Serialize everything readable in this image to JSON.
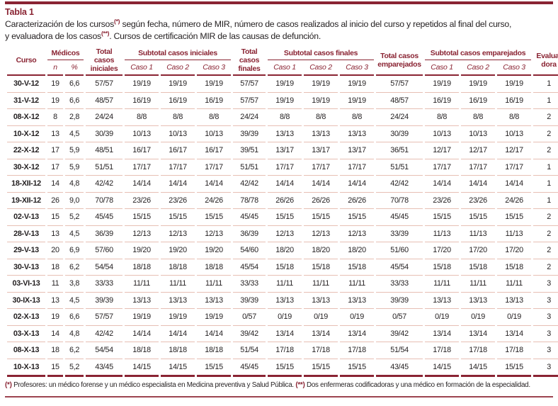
{
  "colors": {
    "accent": "#8A2433",
    "row_line": "#E7BFB4",
    "text": "#231F20"
  },
  "title": {
    "label": "Tabla 1"
  },
  "caption": {
    "part1": "Caracterización de los cursos",
    "marker1": "(*)",
    "part2": " según fecha, número de MIR, número de casos realizados al inicio del curso y repetidos al final del curso,",
    "part3": "y evaluadora de los casos",
    "marker2": "(**)",
    "part4": ". Cursos de certificación MIR de las causas de defunción."
  },
  "table": {
    "header": {
      "curso": "Curso",
      "medicos": "Médicos",
      "n": "n",
      "pct": "%",
      "total_iniciales": "Total casos iniciales",
      "subtotal_iniciales": "Subtotal casos iniciales",
      "total_finales": "Total casos finales",
      "subtotal_finales": "Subtotal casos finales",
      "total_emparejados": "Total casos emparejados",
      "subtotal_emparejados": "Subtotal casos emparejados",
      "caso1": "Caso 1",
      "caso2": "Caso 2",
      "caso3": "Caso 3",
      "evaluadora_line1": "Evalua-",
      "evaluadora_line2": "dora"
    },
    "rows": [
      [
        "30-V-12",
        "19",
        "6,6",
        "57/57",
        "19/19",
        "19/19",
        "19/19",
        "57/57",
        "19/19",
        "19/19",
        "19/19",
        "57/57",
        "19/19",
        "19/19",
        "19/19",
        "1"
      ],
      [
        "31-V-12",
        "19",
        "6,6",
        "48/57",
        "16/19",
        "16/19",
        "16/19",
        "57/57",
        "19/19",
        "19/19",
        "19/19",
        "48/57",
        "16/19",
        "16/19",
        "16/19",
        "1"
      ],
      [
        "08-X-12",
        "8",
        "2,8",
        "24/24",
        "8/8",
        "8/8",
        "8/8",
        "24/24",
        "8/8",
        "8/8",
        "8/8",
        "24/24",
        "8/8",
        "8/8",
        "8/8",
        "2"
      ],
      [
        "10-X-12",
        "13",
        "4,5",
        "30/39",
        "10/13",
        "10/13",
        "10/13",
        "39/39",
        "13/13",
        "13/13",
        "13/13",
        "30/39",
        "10/13",
        "10/13",
        "10/13",
        "2"
      ],
      [
        "22-X-12",
        "17",
        "5,9",
        "48/51",
        "16/17",
        "16/17",
        "16/17",
        "39/51",
        "13/17",
        "13/17",
        "13/17",
        "36/51",
        "12/17",
        "12/17",
        "12/17",
        "2"
      ],
      [
        "30-X-12",
        "17",
        "5,9",
        "51/51",
        "17/17",
        "17/17",
        "17/17",
        "51/51",
        "17/17",
        "17/17",
        "17/17",
        "51/51",
        "17/17",
        "17/17",
        "17/17",
        "1"
      ],
      [
        "18-XII-12",
        "14",
        "4,8",
        "42/42",
        "14/14",
        "14/14",
        "14/14",
        "42/42",
        "14/14",
        "14/14",
        "14/14",
        "42/42",
        "14/14",
        "14/14",
        "14/14",
        "1"
      ],
      [
        "19-XII-12",
        "26",
        "9,0",
        "70/78",
        "23/26",
        "23/26",
        "24/26",
        "78/78",
        "26/26",
        "26/26",
        "26/26",
        "70/78",
        "23/26",
        "23/26",
        "24/26",
        "1"
      ],
      [
        "02-V-13",
        "15",
        "5,2",
        "45/45",
        "15/15",
        "15/15",
        "15/15",
        "45/45",
        "15/15",
        "15/15",
        "15/15",
        "45/45",
        "15/15",
        "15/15",
        "15/15",
        "2"
      ],
      [
        "28-V-13",
        "13",
        "4,5",
        "36/39",
        "12/13",
        "12/13",
        "12/13",
        "36/39",
        "12/13",
        "12/13",
        "12/13",
        "33/39",
        "11/13",
        "11/13",
        "11/13",
        "2"
      ],
      [
        "29-V-13",
        "20",
        "6,9",
        "57/60",
        "19/20",
        "19/20",
        "19/20",
        "54/60",
        "18/20",
        "18/20",
        "18/20",
        "51/60",
        "17/20",
        "17/20",
        "17/20",
        "2"
      ],
      [
        "30-V-13",
        "18",
        "6,2",
        "54/54",
        "18/18",
        "18/18",
        "18/18",
        "45/54",
        "15/18",
        "15/18",
        "15/18",
        "45/54",
        "15/18",
        "15/18",
        "15/18",
        "2"
      ],
      [
        "03-VI-13",
        "11",
        "3,8",
        "33/33",
        "11/11",
        "11/11",
        "11/11",
        "33/33",
        "11/11",
        "11/11",
        "11/11",
        "33/33",
        "11/11",
        "11/11",
        "11/11",
        "3"
      ],
      [
        "30-IX-13",
        "13",
        "4,5",
        "39/39",
        "13/13",
        "13/13",
        "13/13",
        "39/39",
        "13/13",
        "13/13",
        "13/13",
        "39/39",
        "13/13",
        "13/13",
        "13/13",
        "3"
      ],
      [
        "02-X-13",
        "19",
        "6,6",
        "57/57",
        "19/19",
        "19/19",
        "19/19",
        "0/57",
        "0/19",
        "0/19",
        "0/19",
        "0/57",
        "0/19",
        "0/19",
        "0/19",
        "3"
      ],
      [
        "03-X-13",
        "14",
        "4,8",
        "42/42",
        "14/14",
        "14/14",
        "14/14",
        "39/42",
        "13/14",
        "13/14",
        "13/14",
        "39/42",
        "13/14",
        "13/14",
        "13/14",
        "3"
      ],
      [
        "08-X-13",
        "18",
        "6,2",
        "54/54",
        "18/18",
        "18/18",
        "18/18",
        "51/54",
        "17/18",
        "17/18",
        "17/18",
        "51/54",
        "17/18",
        "17/18",
        "17/18",
        "3"
      ],
      [
        "10-X-13",
        "15",
        "5,2",
        "43/45",
        "14/15",
        "14/15",
        "15/15",
        "45/45",
        "15/15",
        "15/15",
        "15/15",
        "43/45",
        "14/15",
        "14/15",
        "15/15",
        "3"
      ]
    ]
  },
  "footnote": {
    "marker1": "(*)",
    "text1": " Profesores: un médico forense y un médico especialista en Medicina preventiva y Salud Pública. ",
    "marker2": "(**)",
    "text2": " Dos enfermeras codificadoras y una médico en formación de la especialidad."
  }
}
